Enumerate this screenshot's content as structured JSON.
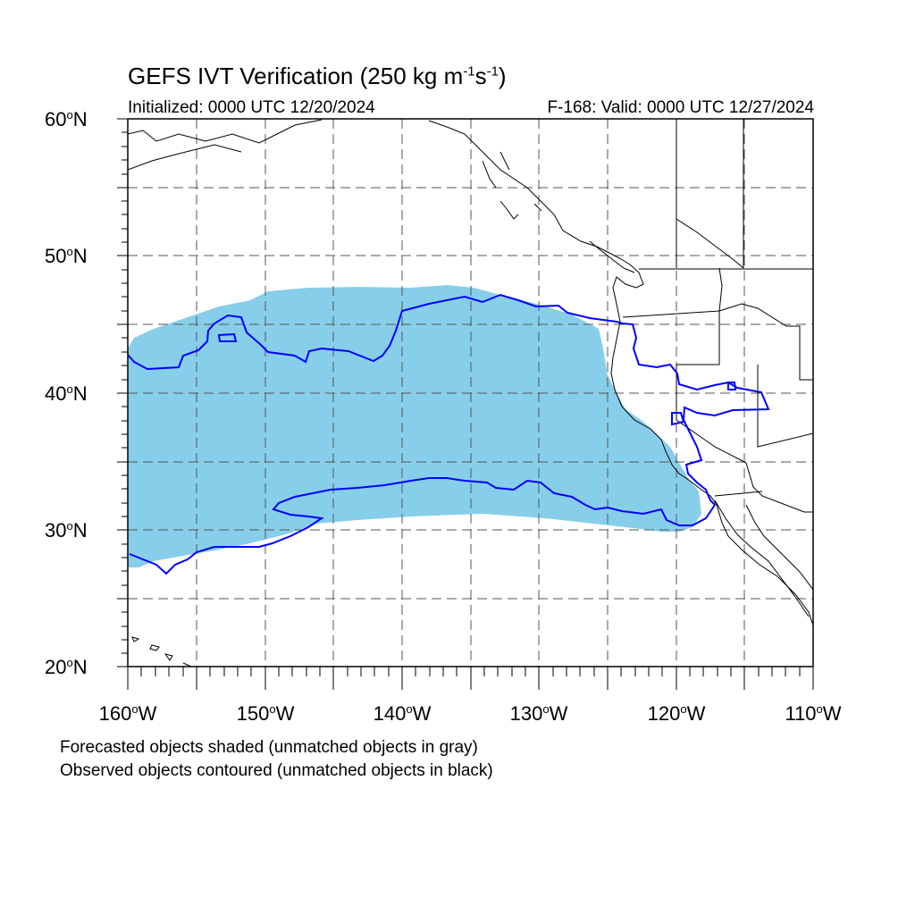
{
  "title": {
    "main": "GEFS IVT Verification (250 kg m",
    "sup1": "-1",
    "mid": "s",
    "sup2": "-1",
    "end": ")"
  },
  "subtitle_left": "Initialized: 0000 UTC 12/20/2024",
  "subtitle_right": "F-168: Valid: 0000 UTC 12/27/2024",
  "axes": {
    "lat_labels": [
      {
        "num": "60",
        "suffix": "N"
      },
      {
        "num": "50",
        "suffix": "N"
      },
      {
        "num": "40",
        "suffix": "N"
      },
      {
        "num": "30",
        "suffix": "N"
      },
      {
        "num": "20",
        "suffix": "N"
      }
    ],
    "lon_labels": [
      {
        "num": "160",
        "suffix": "W"
      },
      {
        "num": "150",
        "suffix": "W"
      },
      {
        "num": "140",
        "suffix": "W"
      },
      {
        "num": "130",
        "suffix": "W"
      },
      {
        "num": "120",
        "suffix": "W"
      },
      {
        "num": "110",
        "suffix": "W"
      }
    ],
    "degree_symbol": "o",
    "lat_range": [
      20,
      60
    ],
    "lon_range": [
      -160,
      -110
    ]
  },
  "footer": {
    "line1": "Forecasted objects shaded (unmatched objects in gray)",
    "line2": "Observed objects contoured (unmatched objects in black)"
  },
  "colors": {
    "forecast_fill": "#87ceea",
    "observed_contour": "#0000ff",
    "grid": "#555555",
    "coast": "#000000"
  }
}
